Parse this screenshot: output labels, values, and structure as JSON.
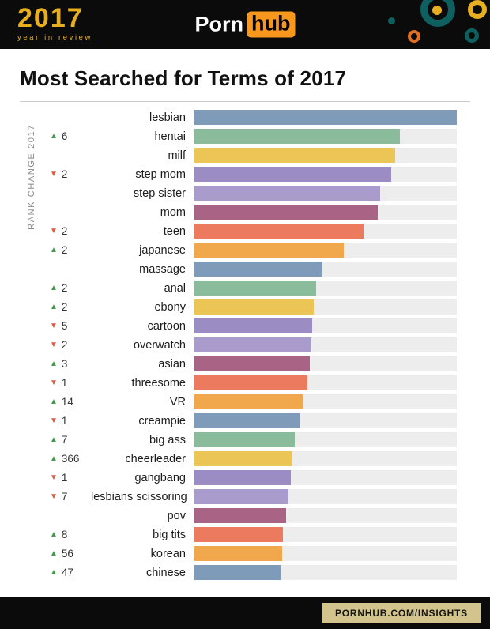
{
  "header": {
    "logo": {
      "year": "2017",
      "subtitle": "year in review"
    },
    "brand": {
      "part1": "Porn",
      "part2": "hub"
    }
  },
  "page": {
    "title": "Most Searched for Terms of 2017"
  },
  "axis": {
    "label": "RANK CHANGE 2017"
  },
  "footer": {
    "link_label": "PORNHUB.COM/INSIGHTS"
  },
  "icons": {
    "rank_up": "▲",
    "rank_down": "▼"
  },
  "colors": {
    "rank_up": "#3f9d4c",
    "rank_down": "#e25840",
    "brand_orange": "#f7971d",
    "logo_gold": "#e7af1f",
    "footer_badge": "#d2c48c",
    "bar_track": "#ededed",
    "header_bg": "#0b0b0b",
    "palette": {
      "blue": "#7e9cba",
      "green": "#8abc9c",
      "yellow": "#ecc557",
      "purple": "#9b8cc3",
      "violet": "#a99ccd",
      "rose": "#a96384",
      "red": "#eb7a5f",
      "orange": "#f1a74b"
    }
  },
  "chart_data": {
    "type": "bar",
    "orientation": "horizontal",
    "title": "Most Searched for Terms of 2017",
    "ylabel": "RANK CHANGE 2017",
    "xlim": [
      0,
      100
    ],
    "values_note": "bar lengths estimated as percent of longest bar",
    "items": [
      {
        "term": "lesbian",
        "value": 100,
        "rank_change": null,
        "color": "#7e9cba"
      },
      {
        "term": "hentai",
        "value": 78.5,
        "rank_change": 6,
        "color": "#8abc9c"
      },
      {
        "term": "milf",
        "value": 76.5,
        "rank_change": null,
        "color": "#ecc557"
      },
      {
        "term": "step mom",
        "value": 75,
        "rank_change": -2,
        "color": "#9b8cc3"
      },
      {
        "term": "step sister",
        "value": 71,
        "rank_change": null,
        "color": "#a99ccd"
      },
      {
        "term": "mom",
        "value": 70,
        "rank_change": null,
        "color": "#a96384"
      },
      {
        "term": "teen",
        "value": 64.5,
        "rank_change": -2,
        "color": "#eb7a5f"
      },
      {
        "term": "japanese",
        "value": 57,
        "rank_change": 2,
        "color": "#f1a74b"
      },
      {
        "term": "massage",
        "value": 48.5,
        "rank_change": null,
        "color": "#7e9cba"
      },
      {
        "term": "anal",
        "value": 46.5,
        "rank_change": 2,
        "color": "#8abc9c"
      },
      {
        "term": "ebony",
        "value": 45.5,
        "rank_change": 2,
        "color": "#ecc557"
      },
      {
        "term": "cartoon",
        "value": 45,
        "rank_change": -5,
        "color": "#9b8cc3"
      },
      {
        "term": "overwatch",
        "value": 44.8,
        "rank_change": -2,
        "color": "#a99ccd"
      },
      {
        "term": "asian",
        "value": 44,
        "rank_change": 3,
        "color": "#a96384"
      },
      {
        "term": "threesome",
        "value": 43.3,
        "rank_change": -1,
        "color": "#eb7a5f"
      },
      {
        "term": "VR",
        "value": 41.5,
        "rank_change": 14,
        "color": "#f1a74b"
      },
      {
        "term": "creampie",
        "value": 40.5,
        "rank_change": -1,
        "color": "#7e9cba"
      },
      {
        "term": "big ass",
        "value": 38.5,
        "rank_change": 7,
        "color": "#8abc9c"
      },
      {
        "term": "cheerleader",
        "value": 37.5,
        "rank_change": 366,
        "color": "#ecc557"
      },
      {
        "term": "gangbang",
        "value": 37,
        "rank_change": -1,
        "color": "#9b8cc3"
      },
      {
        "term": "lesbians scissoring",
        "value": 36,
        "rank_change": -7,
        "color": "#a99ccd"
      },
      {
        "term": "pov",
        "value": 35,
        "rank_change": null,
        "color": "#a96384"
      },
      {
        "term": "big tits",
        "value": 34,
        "rank_change": 8,
        "color": "#eb7a5f"
      },
      {
        "term": "korean",
        "value": 33.5,
        "rank_change": 56,
        "color": "#f1a74b"
      },
      {
        "term": "chinese",
        "value": 33,
        "rank_change": 47,
        "color": "#7e9cba"
      }
    ]
  }
}
